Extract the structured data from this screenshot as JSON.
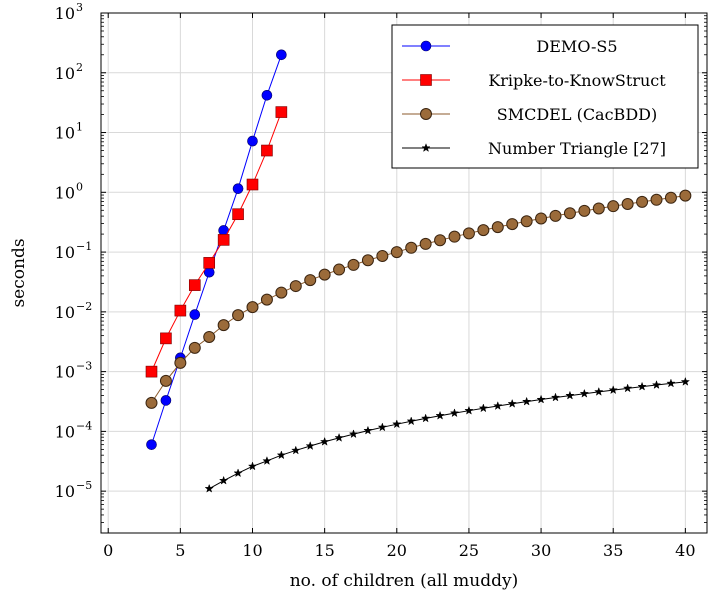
{
  "chart_data": {
    "type": "line",
    "xlabel": "no. of children (all muddy)",
    "ylabel": "seconds",
    "xlim": [
      -0.5,
      41.5
    ],
    "ylim_log10": [
      -5.7,
      3
    ],
    "y_scale": "log",
    "grid": true,
    "legend_position": "top-right",
    "x_ticks": [
      0,
      5,
      10,
      15,
      20,
      25,
      30,
      35,
      40
    ],
    "x_tick_labels": [
      "0",
      "5",
      "10",
      "15",
      "20",
      "25",
      "30",
      "35",
      "40"
    ],
    "y_tick_exponents": [
      -5,
      -4,
      -3,
      -2,
      -1,
      0,
      1,
      2,
      3
    ],
    "y_tick_labels": [
      "10",
      "10",
      "10",
      "10",
      "10",
      "10",
      "10",
      "10",
      "10"
    ],
    "y_tick_superscripts": [
      "−5",
      "−4",
      "−3",
      "−2",
      "−1",
      "0",
      "1",
      "2",
      "3"
    ],
    "series": [
      {
        "name": "DEMO-S5",
        "color": "#0000ff",
        "marker": "circle",
        "x": [
          3,
          4,
          5,
          6,
          7,
          8,
          9,
          10,
          11,
          12
        ],
        "y": [
          6e-05,
          0.00033,
          0.0017,
          0.009,
          0.046,
          0.23,
          1.15,
          7.2,
          42,
          200
        ]
      },
      {
        "name": "Kripke-to-KnowStruct",
        "color": "#ff0000",
        "marker": "square",
        "x": [
          3,
          4,
          5,
          6,
          7,
          8,
          9,
          10,
          11,
          12
        ],
        "y": [
          0.001,
          0.0036,
          0.0105,
          0.028,
          0.066,
          0.16,
          0.43,
          1.35,
          5,
          22
        ]
      },
      {
        "name": "SMCDEL (CacBDD)",
        "color": "#8b5a2b",
        "marker": "circle-filled-brown",
        "x": [
          3,
          4,
          5,
          6,
          7,
          8,
          9,
          10,
          11,
          12,
          13,
          14,
          15,
          16,
          17,
          18,
          19,
          20,
          21,
          22,
          23,
          24,
          25,
          26,
          27,
          28,
          29,
          30,
          31,
          32,
          33,
          34,
          35,
          36,
          37,
          38,
          39,
          40
        ],
        "y": [
          0.0003,
          0.0007,
          0.0014,
          0.0025,
          0.0038,
          0.006,
          0.0088,
          0.012,
          0.016,
          0.021,
          0.027,
          0.034,
          0.042,
          0.051,
          0.061,
          0.073,
          0.086,
          0.1,
          0.118,
          0.137,
          0.158,
          0.181,
          0.206,
          0.233,
          0.262,
          0.294,
          0.328,
          0.365,
          0.404,
          0.446,
          0.49,
          0.537,
          0.586,
          0.638,
          0.692,
          0.75,
          0.81,
          0.88
        ]
      },
      {
        "name": "Number Triangle [27]",
        "color": "#000000",
        "marker": "star",
        "x": [
          7,
          8,
          9,
          10,
          11,
          12,
          13,
          14,
          15,
          16,
          17,
          18,
          19,
          20,
          21,
          22,
          23,
          24,
          25,
          26,
          27,
          28,
          29,
          30,
          31,
          32,
          33,
          34,
          35,
          36,
          37,
          38,
          39,
          40
        ],
        "y": [
          1.1e-05,
          1.5e-05,
          2e-05,
          2.6e-05,
          3.2e-05,
          4e-05,
          4.8e-05,
          5.7e-05,
          6.7e-05,
          7.8e-05,
          9e-05,
          0.000103,
          0.000117,
          0.000132,
          0.000148,
          0.000165,
          0.000183,
          0.000202,
          0.000222,
          0.000244,
          0.000266,
          0.00029,
          0.000315,
          0.000341,
          0.000369,
          0.000397,
          0.000427,
          0.000459,
          0.000491,
          0.000525,
          0.000561,
          0.000597,
          0.000635,
          0.000675
        ]
      }
    ]
  }
}
